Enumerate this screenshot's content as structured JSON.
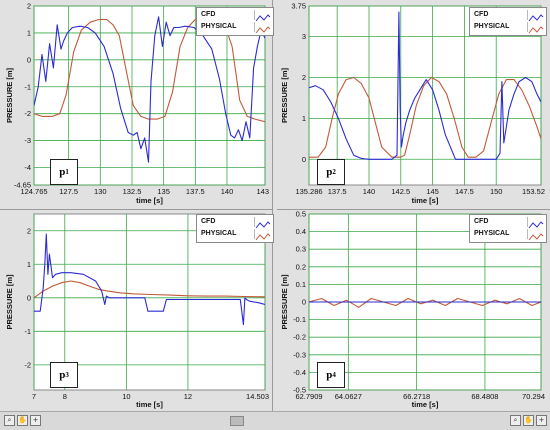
{
  "chart_data": [
    {
      "type": "line",
      "panel_label": "p",
      "panel_sub": "1",
      "xlabel": "time [s]",
      "ylabel": "PRESSURE [m]",
      "xlim": [
        124.765,
        143
      ],
      "ylim": [
        -4.65,
        2
      ],
      "xticks": [
        {
          "v": 124.765,
          "t": "124.765"
        },
        {
          "v": 127.5,
          "t": "127.5"
        },
        {
          "v": 130,
          "t": "130"
        },
        {
          "v": 132.5,
          "t": "132.5"
        },
        {
          "v": 135,
          "t": "135"
        },
        {
          "v": 137.5,
          "t": "137.5"
        },
        {
          "v": 140,
          "t": "140"
        },
        {
          "v": 143,
          "t": "143"
        }
      ],
      "yticks": [
        {
          "v": -4.65,
          "t": "-4.65"
        },
        {
          "v": -4,
          "t": "-4"
        },
        {
          "v": -3,
          "t": "-3"
        },
        {
          "v": -2,
          "t": "-2"
        },
        {
          "v": -1,
          "t": "-1"
        },
        {
          "v": 0,
          "t": "0"
        },
        {
          "v": 1,
          "t": "1"
        },
        {
          "v": 2,
          "t": "2"
        }
      ],
      "series": [
        {
          "name": "CFD",
          "color": "#2b2bd4",
          "x": [
            124.765,
            125.1,
            125.4,
            125.7,
            126.0,
            126.3,
            126.6,
            126.9,
            127.1,
            127.4,
            127.8,
            128.4,
            129.0,
            129.6,
            130.3,
            131.0,
            131.6,
            132.2,
            132.6,
            132.9,
            133.2,
            133.5,
            133.8,
            134.0,
            134.3,
            134.6,
            134.9,
            135.2,
            135.5,
            135.8,
            136.2,
            136.7,
            137.4,
            138.1,
            138.8,
            139.4,
            139.9,
            140.3,
            140.6,
            140.9,
            141.2,
            141.5,
            141.8,
            142.1,
            142.4,
            142.7,
            143.0
          ],
          "y": [
            -1.7,
            -1.0,
            0.2,
            -0.8,
            0.6,
            -0.3,
            1.3,
            0.4,
            0.7,
            1.0,
            1.2,
            1.25,
            1.2,
            1.0,
            0.5,
            -0.5,
            -1.8,
            -2.7,
            -2.8,
            -2.7,
            -3.3,
            -2.9,
            -3.8,
            -0.8,
            0.9,
            1.6,
            0.5,
            1.4,
            0.9,
            1.2,
            1.2,
            1.25,
            1.2,
            0.9,
            0.4,
            -0.7,
            -2.0,
            -2.8,
            -2.9,
            -2.6,
            -3.0,
            -2.3,
            -2.9,
            -0.3,
            0.5,
            1.1,
            0.8
          ]
        },
        {
          "name": "PHYSICAL",
          "color": "#c05a3a",
          "x": [
            124.765,
            125.4,
            126.2,
            126.8,
            127.3,
            127.9,
            128.5,
            129.2,
            129.9,
            130.5,
            131.0,
            131.5,
            132.0,
            132.6,
            133.2,
            133.8,
            134.5,
            135.1,
            135.7,
            136.3,
            136.9,
            137.5,
            138.1,
            138.7,
            139.3,
            139.9,
            140.4,
            141.0,
            141.6,
            142.2,
            143.0
          ],
          "y": [
            -2.0,
            -2.1,
            -2.1,
            -2.0,
            -1.3,
            0.3,
            1.1,
            1.4,
            1.5,
            1.5,
            1.3,
            0.9,
            -0.3,
            -1.7,
            -2.1,
            -2.2,
            -2.2,
            -2.1,
            -1.2,
            0.5,
            1.2,
            1.5,
            1.45,
            1.4,
            1.35,
            1.2,
            0.5,
            -1.5,
            -2.1,
            -2.2,
            -2.3
          ]
        }
      ],
      "legend": "top-right"
    },
    {
      "type": "line",
      "panel_label": "p",
      "panel_sub": "2",
      "xlabel": "time [s]",
      "ylabel": "PRESSURE [m]",
      "xlim": [
        135.286,
        153.52
      ],
      "ylim": [
        -0.63,
        3.75
      ],
      "xticks": [
        {
          "v": 135.286,
          "t": "135.286"
        },
        {
          "v": 137.5,
          "t": "137.5"
        },
        {
          "v": 140,
          "t": "140"
        },
        {
          "v": 142.5,
          "t": "142.5"
        },
        {
          "v": 145,
          "t": "145"
        },
        {
          "v": 147.5,
          "t": "147.5"
        },
        {
          "v": 150,
          "t": "150"
        },
        {
          "v": 153.52,
          "t": "153.52"
        }
      ],
      "yticks": [
        {
          "v": 0,
          "t": "0"
        },
        {
          "v": 1,
          "t": "1"
        },
        {
          "v": 2,
          "t": "2"
        },
        {
          "v": 3,
          "t": "3"
        },
        {
          "v": 3.75,
          "t": "3.75"
        }
      ],
      "series": [
        {
          "name": "CFD",
          "color": "#2b2bd4",
          "x": [
            135.286,
            135.8,
            136.4,
            137.0,
            137.6,
            138.2,
            138.8,
            139.4,
            140.0,
            141.0,
            141.8,
            142.2,
            142.35,
            142.45,
            142.55,
            142.7,
            142.9,
            143.2,
            143.6,
            144.0,
            144.5,
            145.0,
            145.5,
            146.0,
            146.8,
            147.6,
            148.4,
            149.2,
            150.0,
            150.3,
            150.45,
            150.6,
            150.8,
            151.0,
            151.4,
            151.8,
            152.3,
            152.8,
            153.2,
            153.52
          ],
          "y": [
            1.75,
            1.8,
            1.7,
            1.4,
            1.0,
            0.5,
            0.1,
            0.02,
            0.0,
            0.0,
            0.0,
            0.1,
            3.6,
            1.2,
            0.3,
            0.6,
            0.9,
            1.2,
            1.5,
            1.7,
            1.95,
            1.7,
            1.2,
            0.6,
            0.0,
            0.0,
            0.0,
            0.0,
            0.0,
            0.15,
            1.9,
            0.4,
            0.8,
            1.2,
            1.6,
            1.9,
            2.0,
            1.9,
            1.6,
            1.4
          ]
        },
        {
          "name": "PHYSICAL",
          "color": "#c05a3a",
          "x": [
            135.286,
            136.0,
            136.6,
            137.1,
            137.6,
            138.2,
            138.8,
            139.4,
            140.0,
            140.5,
            141.0,
            141.8,
            142.5,
            142.8,
            143.2,
            143.7,
            144.3,
            144.9,
            145.5,
            146.1,
            146.7,
            147.3,
            147.8,
            148.4,
            149.0,
            149.6,
            150.2,
            150.8,
            151.4,
            152.0,
            152.6,
            153.2,
            153.52
          ],
          "y": [
            0.05,
            0.05,
            0.3,
            1.0,
            1.6,
            1.95,
            2.0,
            1.85,
            1.5,
            0.9,
            0.3,
            0.05,
            0.05,
            0.1,
            0.6,
            1.3,
            1.8,
            2.0,
            1.9,
            1.6,
            1.0,
            0.3,
            0.05,
            0.05,
            0.2,
            0.9,
            1.6,
            1.95,
            1.95,
            1.7,
            1.3,
            0.8,
            0.5
          ]
        }
      ],
      "legend": "top-right"
    },
    {
      "type": "line",
      "panel_label": "p",
      "panel_sub": "3",
      "xlabel": "time [s]",
      "ylabel": "PRESSURE [m]",
      "xlim": [
        7,
        14.503
      ],
      "ylim": [
        -2.75,
        2.5
      ],
      "xticks": [
        {
          "v": 7,
          "t": "7"
        },
        {
          "v": 8,
          "t": "8"
        },
        {
          "v": 10,
          "t": "10"
        },
        {
          "v": 12,
          "t": "12"
        },
        {
          "v": 14.503,
          "t": "14.503"
        }
      ],
      "yticks": [
        {
          "v": -2,
          "t": "-2"
        },
        {
          "v": -1,
          "t": "-1"
        },
        {
          "v": 0,
          "t": "0"
        },
        {
          "v": 1,
          "t": "1"
        },
        {
          "v": 2,
          "t": "2"
        }
      ],
      "series": [
        {
          "name": "CFD",
          "color": "#2b2bd4",
          "x": [
            7.0,
            7.2,
            7.3,
            7.35,
            7.4,
            7.45,
            7.5,
            7.6,
            7.7,
            7.9,
            8.2,
            8.6,
            9.0,
            9.2,
            9.3,
            9.35,
            9.45,
            9.6,
            10.0,
            10.6,
            10.7,
            11.2,
            11.3,
            11.8,
            12.3,
            12.8,
            13.3,
            13.7,
            13.8,
            13.85,
            13.9,
            14.0,
            14.3,
            14.503
          ],
          "y": [
            -0.4,
            -0.4,
            0.3,
            1.0,
            1.9,
            0.7,
            1.3,
            0.6,
            0.7,
            0.75,
            0.75,
            0.7,
            0.5,
            0.2,
            -0.2,
            0.05,
            0.0,
            0.0,
            0.0,
            0.0,
            -0.4,
            -0.4,
            -0.05,
            -0.05,
            -0.05,
            -0.05,
            -0.05,
            -0.05,
            -0.8,
            0.0,
            -0.05,
            -0.1,
            -0.15,
            -0.2
          ]
        },
        {
          "name": "PHYSICAL",
          "color": "#c05a3a",
          "x": [
            7.0,
            7.3,
            7.6,
            7.9,
            8.2,
            8.5,
            8.8,
            9.1,
            9.4,
            9.8,
            10.2,
            10.8,
            11.4,
            12.0,
            12.6,
            13.2,
            13.8,
            14.503
          ],
          "y": [
            0.0,
            0.2,
            0.35,
            0.45,
            0.5,
            0.45,
            0.35,
            0.25,
            0.2,
            0.15,
            0.12,
            0.1,
            0.08,
            0.06,
            0.05,
            0.05,
            0.04,
            0.03
          ]
        }
      ],
      "legend": "top-right"
    },
    {
      "type": "line",
      "panel_label": "p",
      "panel_sub": "4",
      "xlabel": "time [s]",
      "ylabel": "PRESSURE [m]",
      "xlim": [
        62.7909,
        70.294
      ],
      "ylim": [
        -0.5,
        0.5
      ],
      "xticks": [
        {
          "v": 62.7909,
          "t": "62.7909"
        },
        {
          "v": 64.0627,
          "t": "64.0627"
        },
        {
          "v": 66.2718,
          "t": "66.2718"
        },
        {
          "v": 68.4808,
          "t": "68.4808"
        },
        {
          "v": 70.294,
          "t": "70.294"
        }
      ],
      "yticks": [
        {
          "v": -0.5,
          "t": "-0.5"
        },
        {
          "v": -0.4,
          "t": "-0.4"
        },
        {
          "v": -0.3,
          "t": "-0.3"
        },
        {
          "v": -0.2,
          "t": "-0.2"
        },
        {
          "v": -0.1,
          "t": "-0.1"
        },
        {
          "v": 0,
          "t": "0"
        },
        {
          "v": 0.1,
          "t": "0.1"
        },
        {
          "v": 0.2,
          "t": "0.2"
        },
        {
          "v": 0.3,
          "t": "0.3"
        },
        {
          "v": 0.4,
          "t": "0.4"
        },
        {
          "v": 0.5,
          "t": "0.5"
        }
      ],
      "series": [
        {
          "name": "CFD",
          "color": "#2b2bd4",
          "x": [
            62.7909,
            70.294
          ],
          "y": [
            0.0,
            0.0
          ]
        },
        {
          "name": "PHYSICAL",
          "color": "#c05a3a",
          "x": [
            62.7909,
            63.2,
            63.6,
            64.0,
            64.4,
            64.8,
            65.2,
            65.6,
            66.0,
            66.4,
            66.8,
            67.2,
            67.6,
            68.0,
            68.4,
            68.8,
            69.2,
            69.6,
            70.0,
            70.294
          ],
          "y": [
            0.0,
            0.02,
            -0.02,
            0.01,
            -0.03,
            0.02,
            0.0,
            -0.02,
            0.02,
            -0.01,
            0.01,
            -0.02,
            0.02,
            0.0,
            -0.02,
            0.01,
            -0.01,
            0.02,
            -0.02,
            0.0
          ]
        }
      ],
      "legend": "top-right"
    }
  ],
  "toolbar": {
    "zoom_icon": "magnifier-icon",
    "pan_icon": "hand-icon",
    "cursor_icon": "cursor-icon"
  }
}
